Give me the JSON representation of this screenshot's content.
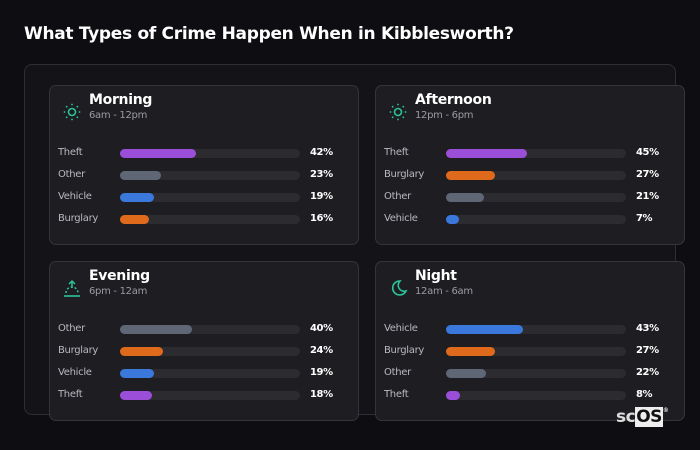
{
  "title": "What Types of Crime Happen When in Kibblesworth?",
  "colors": {
    "Theft": "#9b4fd9",
    "Other": "#5f6776",
    "Vehicle": "#3a78dc",
    "Burglary": "#e06a1b",
    "accent": "#2bc49a"
  },
  "logo": {
    "prefix": "sc",
    "boxed": "OS",
    "mark": "®"
  },
  "chart_data": {
    "type": "bar",
    "title": "What Types of Crime Happen When in Kibblesworth?",
    "unit": "%",
    "panels": [
      {
        "name": "Morning",
        "range": "6am - 12pm",
        "icon": "sun-icon",
        "items": [
          {
            "label": "Theft",
            "value": 42
          },
          {
            "label": "Other",
            "value": 23
          },
          {
            "label": "Vehicle",
            "value": 19
          },
          {
            "label": "Burglary",
            "value": 16
          }
        ]
      },
      {
        "name": "Afternoon",
        "range": "12pm - 6pm",
        "icon": "sun-icon",
        "items": [
          {
            "label": "Theft",
            "value": 45
          },
          {
            "label": "Burglary",
            "value": 27
          },
          {
            "label": "Other",
            "value": 21
          },
          {
            "label": "Vehicle",
            "value": 7
          }
        ]
      },
      {
        "name": "Evening",
        "range": "6pm - 12am",
        "icon": "sunset-icon",
        "items": [
          {
            "label": "Other",
            "value": 40
          },
          {
            "label": "Burglary",
            "value": 24
          },
          {
            "label": "Vehicle",
            "value": 19
          },
          {
            "label": "Theft",
            "value": 18
          }
        ]
      },
      {
        "name": "Night",
        "range": "12am - 6am",
        "icon": "moon-icon",
        "items": [
          {
            "label": "Vehicle",
            "value": 43
          },
          {
            "label": "Burglary",
            "value": 27
          },
          {
            "label": "Other",
            "value": 22
          },
          {
            "label": "Theft",
            "value": 8
          }
        ]
      }
    ]
  }
}
